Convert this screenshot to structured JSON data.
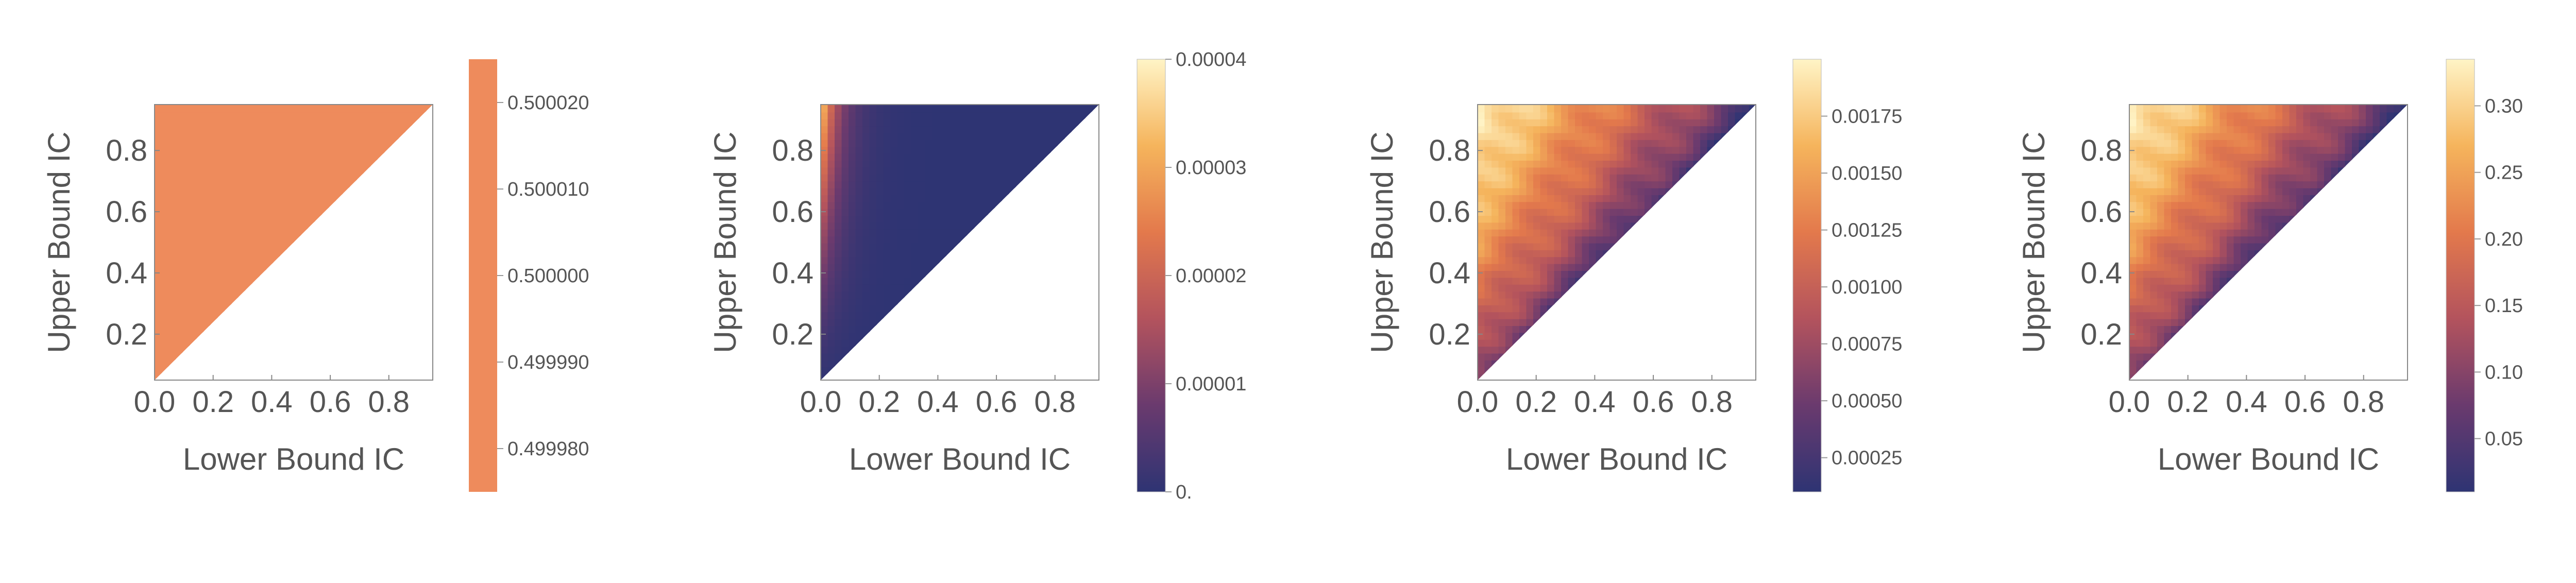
{
  "chart_data": [
    {
      "type": "heatmap",
      "region": "triangle upper<=... (upper > lower)",
      "xlabel": "Lower Bound IC",
      "ylabel": "Upper Bound IC",
      "xticks": [
        "0.0",
        "0.2",
        "0.4",
        "0.6",
        "0.8"
      ],
      "yticks": [
        "0.2",
        "0.4",
        "0.6",
        "0.8"
      ],
      "xlim": [
        0.0,
        0.95
      ],
      "ylim": [
        0.05,
        0.95
      ],
      "colorbar": {
        "range": [
          0.499975,
          0.500025
        ],
        "ticks": [
          {
            "value": 0.49998,
            "label": "0.499980"
          },
          {
            "value": 0.49999,
            "label": "0.499990"
          },
          {
            "value": 0.5,
            "label": "0.500000"
          },
          {
            "value": 0.50001,
            "label": "0.500010"
          },
          {
            "value": 0.50002,
            "label": "0.500020"
          }
        ]
      },
      "pattern": "constant",
      "constant_value": 0.5
    },
    {
      "type": "heatmap",
      "xlabel": "Lower Bound IC",
      "ylabel": "Upper Bound IC",
      "xticks": [
        "0.0",
        "0.2",
        "0.4",
        "0.6",
        "0.8"
      ],
      "yticks": [
        "0.2",
        "0.4",
        "0.6",
        "0.8"
      ],
      "xlim": [
        0.0,
        0.95
      ],
      "ylim": [
        0.05,
        0.95
      ],
      "colorbar": {
        "range": [
          0.0,
          4e-05
        ],
        "ticks": [
          {
            "value": 0.0,
            "label": "0."
          },
          {
            "value": 1e-05,
            "label": "0.00001"
          },
          {
            "value": 2e-05,
            "label": "0.00002"
          },
          {
            "value": 3e-05,
            "label": "0.00003"
          },
          {
            "value": 4e-05,
            "label": "0.00004"
          }
        ]
      },
      "pattern": "edge",
      "max_value": 4e-05
    },
    {
      "type": "heatmap",
      "xlabel": "Lower Bound IC",
      "ylabel": "Upper Bound IC",
      "xticks": [
        "0.0",
        "0.2",
        "0.4",
        "0.6",
        "0.8"
      ],
      "yticks": [
        "0.2",
        "0.4",
        "0.6",
        "0.8"
      ],
      "xlim": [
        0.0,
        0.95
      ],
      "ylim": [
        0.05,
        0.95
      ],
      "colorbar": {
        "range": [
          0.0001,
          0.002
        ],
        "ticks": [
          {
            "value": 0.00025,
            "label": "0.00025"
          },
          {
            "value": 0.0005,
            "label": "0.00050"
          },
          {
            "value": 0.00075,
            "label": "0.00075"
          },
          {
            "value": 0.001,
            "label": "0.00100"
          },
          {
            "value": 0.00125,
            "label": "0.00125"
          },
          {
            "value": 0.0015,
            "label": "0.00150"
          },
          {
            "value": 0.00175,
            "label": "0.00175"
          }
        ]
      },
      "pattern": "width",
      "max_value": 0.0019
    },
    {
      "type": "heatmap",
      "xlabel": "Lower Bound IC",
      "ylabel": "Upper Bound IC",
      "xticks": [
        "0.0",
        "0.2",
        "0.4",
        "0.6",
        "0.8"
      ],
      "yticks": [
        "0.2",
        "0.4",
        "0.6",
        "0.8"
      ],
      "xlim": [
        0.0,
        0.95
      ],
      "ylim": [
        0.05,
        0.95
      ],
      "colorbar": {
        "range": [
          0.01,
          0.335
        ],
        "ticks": [
          {
            "value": 0.05,
            "label": "0.05"
          },
          {
            "value": 0.1,
            "label": "0.10"
          },
          {
            "value": 0.15,
            "label": "0.15"
          },
          {
            "value": 0.2,
            "label": "0.20"
          },
          {
            "value": 0.25,
            "label": "0.25"
          },
          {
            "value": 0.3,
            "label": "0.30"
          }
        ]
      },
      "pattern": "width",
      "max_value": 0.33
    }
  ],
  "colors": {
    "scale": [
      "#2e3473",
      "#6a3a6e",
      "#b3535d",
      "#e3794c",
      "#f5b45c",
      "#fff4c6"
    ],
    "constant_fill": "#ee8b5c",
    "frame": "#888888",
    "text": "#555555"
  }
}
